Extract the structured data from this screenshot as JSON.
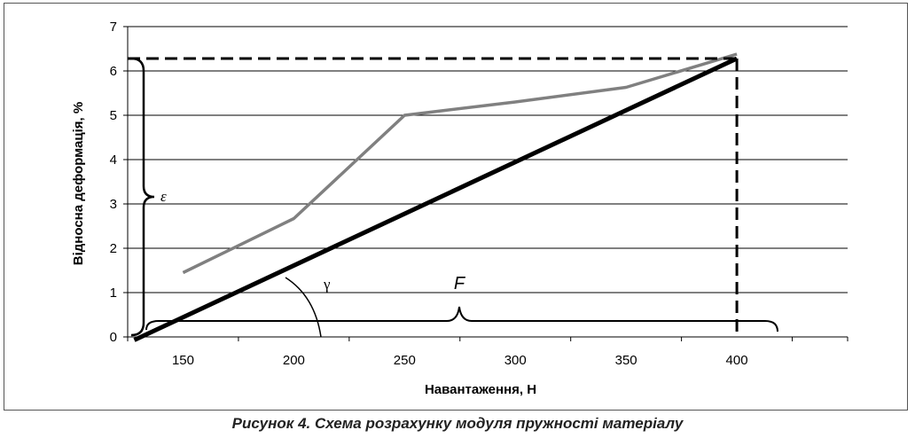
{
  "caption": "Рисунок 4. Схема розрахунку модуля пружності матеріалу",
  "chart_data": {
    "type": "line",
    "xlabel": "Навантаження, Н",
    "ylabel": "Відносна деформація, %",
    "x_ticks": [
      150,
      200,
      250,
      300,
      350,
      400
    ],
    "y_ticks": [
      0,
      1,
      2,
      3,
      4,
      5,
      6,
      7
    ],
    "xlim": [
      125,
      450
    ],
    "ylim": [
      0,
      7
    ],
    "grid": "horizontal",
    "series": [
      {
        "color": "#808080",
        "points": [
          [
            150,
            1.45
          ],
          [
            200,
            2.67
          ],
          [
            250,
            5.0
          ],
          [
            300,
            5.3
          ],
          [
            350,
            5.63
          ],
          [
            400,
            6.38
          ]
        ]
      },
      {
        "color": "#000000",
        "points": [
          [
            128,
            -0.07
          ],
          [
            400,
            6.28
          ]
        ]
      }
    ],
    "annotations": {
      "epsilon": "ε",
      "gamma": "γ",
      "force": "F",
      "dashed_value": {
        "x": 400,
        "y": 6.28
      }
    }
  }
}
